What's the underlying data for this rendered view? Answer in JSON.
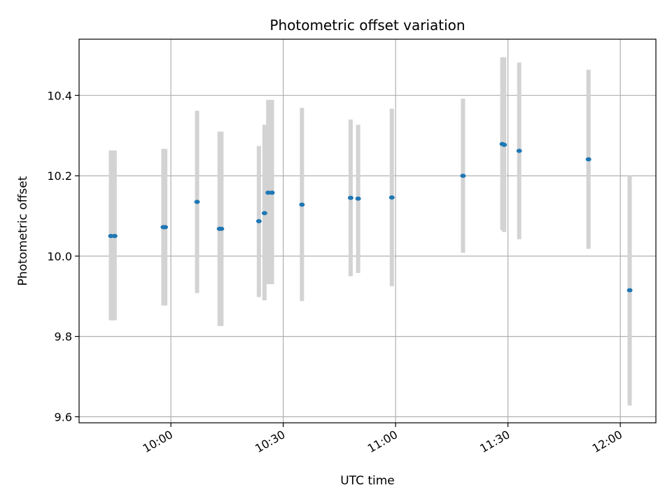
{
  "chart_data": {
    "type": "scatter",
    "title": "Photometric offset variation",
    "xlabel": "UTC time",
    "ylabel": "Photometric offset",
    "x_tick_labels": [
      "10:00",
      "10:30",
      "11:00",
      "11:30",
      "12:00"
    ],
    "x_ticks": [
      "10:00",
      "10:30",
      "11:00",
      "11:30",
      "12:00"
    ],
    "y_ticks": [
      9.6,
      9.8,
      10.0,
      10.2,
      10.4
    ],
    "y_tick_labels": [
      "9.6",
      "9.8",
      "10.0",
      "10.2",
      "10.4"
    ],
    "xlim": [
      "09:35:30",
      "12:09:30"
    ],
    "ylim": [
      9.585,
      10.54
    ],
    "grid": true,
    "colors": {
      "points": "#1f77b4",
      "errorbars": "#d3d3d3",
      "grid": "#b0b0b0"
    },
    "series": [
      {
        "points": [
          {
            "x": "09:44:00",
            "y": 10.05,
            "yerr_low": 9.84,
            "yerr_high": 10.263
          },
          {
            "x": "09:45:00",
            "y": 10.05,
            "yerr_low": 9.84,
            "yerr_high": 10.263
          },
          {
            "x": "09:58:00",
            "y": 10.072,
            "yerr_low": 9.877,
            "yerr_high": 10.267
          },
          {
            "x": "09:58:30",
            "y": 10.072,
            "yerr_low": 9.877,
            "yerr_high": 10.267
          },
          {
            "x": "10:07:00",
            "y": 10.135,
            "yerr_low": 9.908,
            "yerr_high": 10.362
          },
          {
            "x": "10:13:00",
            "y": 10.068,
            "yerr_low": 9.826,
            "yerr_high": 10.31
          },
          {
            "x": "10:13:30",
            "y": 10.068,
            "yerr_low": 9.826,
            "yerr_high": 10.31
          },
          {
            "x": "10:23:30",
            "y": 10.087,
            "yerr_low": 9.898,
            "yerr_high": 10.274
          },
          {
            "x": "10:25:00",
            "y": 10.107,
            "yerr_low": 9.89,
            "yerr_high": 10.327
          },
          {
            "x": "10:26:00",
            "y": 10.158,
            "yerr_low": 9.93,
            "yerr_high": 10.389
          },
          {
            "x": "10:27:00",
            "y": 10.158,
            "yerr_low": 9.93,
            "yerr_high": 10.389
          },
          {
            "x": "10:35:00",
            "y": 10.128,
            "yerr_low": 9.888,
            "yerr_high": 10.369
          },
          {
            "x": "10:48:00",
            "y": 10.145,
            "yerr_low": 9.95,
            "yerr_high": 10.34
          },
          {
            "x": "10:50:00",
            "y": 10.143,
            "yerr_low": 9.958,
            "yerr_high": 10.327
          },
          {
            "x": "10:59:00",
            "y": 10.146,
            "yerr_low": 9.925,
            "yerr_high": 10.367
          },
          {
            "x": "11:18:00",
            "y": 10.2,
            "yerr_low": 10.008,
            "yerr_high": 10.392
          },
          {
            "x": "11:28:30",
            "y": 10.279,
            "yerr_low": 10.065,
            "yerr_high": 10.495
          },
          {
            "x": "11:29:00",
            "y": 10.277,
            "yerr_low": 10.06,
            "yerr_high": 10.495
          },
          {
            "x": "11:33:00",
            "y": 10.262,
            "yerr_low": 10.042,
            "yerr_high": 10.482
          },
          {
            "x": "11:51:30",
            "y": 10.241,
            "yerr_low": 10.018,
            "yerr_high": 10.464
          },
          {
            "x": "12:02:30",
            "y": 9.915,
            "yerr_low": 9.628,
            "yerr_high": 10.2
          }
        ]
      }
    ]
  }
}
